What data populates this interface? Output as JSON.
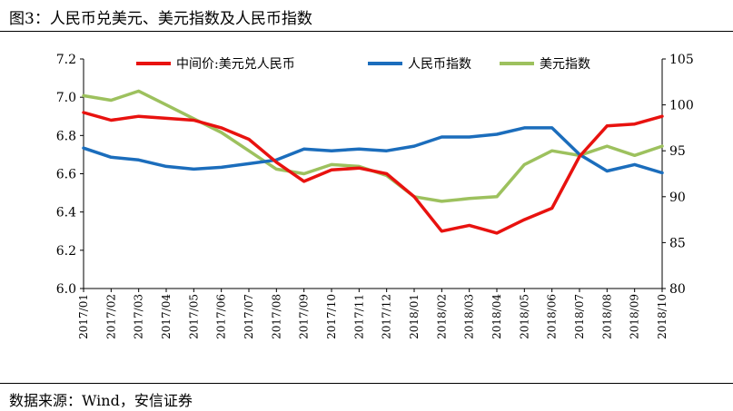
{
  "title": "图3：人民币兑美元、美元指数及人民币指数",
  "source": "数据来源：Wind，安信证券",
  "chart_data": {
    "type": "line",
    "categories": [
      "2017/01",
      "2017/02",
      "2017/03",
      "2017/04",
      "2017/05",
      "2017/06",
      "2017/07",
      "2017/08",
      "2017/09",
      "2017/10",
      "2017/11",
      "2017/12",
      "2018/01",
      "2018/02",
      "2018/03",
      "2018/04",
      "2018/05",
      "2018/06",
      "2018/07",
      "2018/08",
      "2018/09",
      "2018/10"
    ],
    "y_left": {
      "min": 6.0,
      "max": 7.2,
      "ticks": [
        "6.0",
        "6.2",
        "6.4",
        "6.6",
        "6.8",
        "7.0",
        "7.2"
      ]
    },
    "y_right": {
      "min": 80,
      "max": 105,
      "ticks": [
        "80",
        "85",
        "90",
        "95",
        "100",
        "105"
      ]
    },
    "legend_placement": "top",
    "series": [
      {
        "name": "中间价:美元兑人民币",
        "axis": "left",
        "color": "#e8120f",
        "values": [
          6.92,
          6.88,
          6.9,
          6.89,
          6.88,
          6.84,
          6.78,
          6.66,
          6.56,
          6.62,
          6.63,
          6.6,
          6.48,
          6.3,
          6.33,
          6.29,
          6.36,
          6.42,
          6.69,
          6.85,
          6.86,
          6.9
        ]
      },
      {
        "name": "人民币指数",
        "axis": "right",
        "color": "#1b6dbc",
        "values": [
          95.3,
          94.3,
          94.0,
          93.3,
          93.0,
          93.2,
          93.6,
          94.0,
          95.2,
          95.0,
          95.2,
          95.0,
          95.5,
          96.5,
          96.5,
          96.8,
          97.5,
          97.5,
          94.6,
          92.8,
          93.5,
          92.6
        ]
      },
      {
        "name": "美元指数",
        "axis": "right",
        "color": "#9dc15e",
        "values": [
          101.0,
          100.5,
          101.5,
          100.0,
          98.5,
          97.0,
          95.0,
          93.0,
          92.5,
          93.5,
          93.3,
          92.3,
          90.0,
          89.5,
          89.8,
          90.0,
          93.5,
          95.0,
          94.5,
          95.5,
          94.5,
          95.5
        ]
      }
    ]
  }
}
